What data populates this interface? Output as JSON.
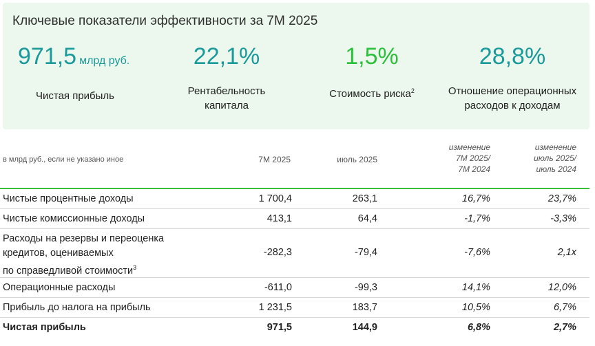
{
  "panel": {
    "title": "Ключевые показатели эффективности за 7М 2025",
    "kpis": [
      {
        "value": "971,5",
        "unit": "млрд руб.",
        "label": "Чистая прибыль"
      },
      {
        "value": "22,1%",
        "label_line1": "Рентабельность",
        "label_line2": "капитала"
      },
      {
        "value": "1,5%",
        "label": "Стоимость риска",
        "label_sup": "2"
      },
      {
        "value": "28,8%",
        "label_line1": "Отношение операционных",
        "label_line2": "расходов к доходам"
      }
    ],
    "colors": {
      "teal": "#1a9a9a",
      "green": "#2bbf3a",
      "panel_bg": "#ecf8ed"
    }
  },
  "table": {
    "units_note": "в млрд руб., если не указано иное",
    "headers": {
      "c1": "7М 2025",
      "c2": "июль 2025",
      "c3": [
        "изменение",
        "7М 2025/",
        "7М 2024"
      ],
      "c4": [
        "изменение",
        "июль 2025/",
        "июль 2024"
      ]
    },
    "rows": [
      {
        "label": "Чистые процентные доходы",
        "v1": "1 700,4",
        "v2": "263,1",
        "v3": "16,7%",
        "v4": "23,7%"
      },
      {
        "label": "Чистые комиссионные доходы",
        "v1": "413,1",
        "v2": "64,4",
        "v3": "-1,7%",
        "v4": "-3,3%"
      },
      {
        "label_lines": [
          "Расходы на резервы и переоценка",
          "кредитов, оцениваемых",
          "по справедливой стоимости"
        ],
        "label_sup": "3",
        "v1": "-282,3",
        "v2": "-79,4",
        "v3": "-7,6%",
        "v4": "2,1x"
      },
      {
        "label": "Операционные расходы",
        "v1": "-611,0",
        "v2": "-99,3",
        "v3": "14,1%",
        "v4": "12,0%"
      },
      {
        "label": "Прибыль до налога на прибыль",
        "v1": "1 231,5",
        "v2": "183,7",
        "v3": "10,5%",
        "v4": "6,7%"
      },
      {
        "label": "Чистая прибыль",
        "v1": "971,5",
        "v2": "144,9",
        "v3": "6,8%",
        "v4": "2,7%"
      }
    ]
  }
}
